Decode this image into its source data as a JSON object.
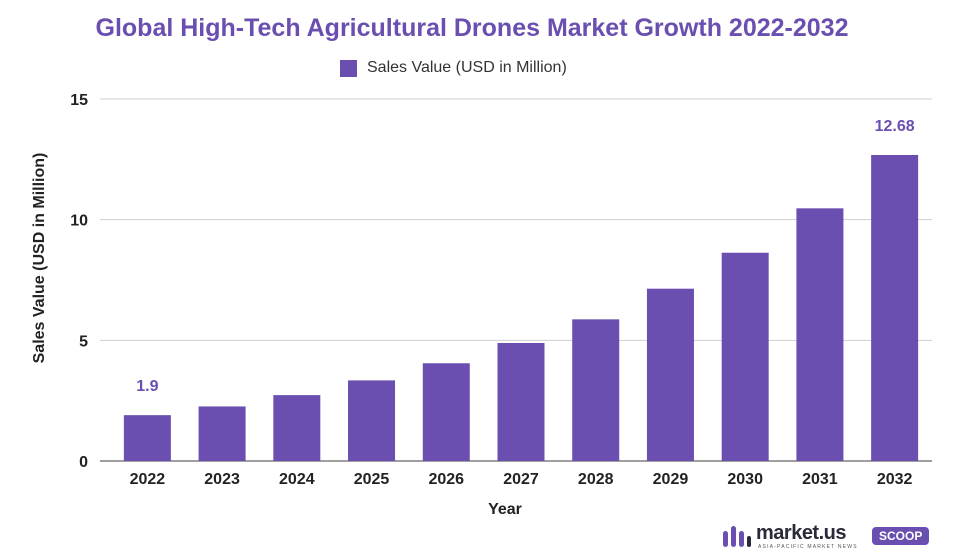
{
  "chart_data": {
    "type": "bar",
    "title": "Global High-Tech Agricultural Drones Market Growth 2022-2032",
    "xlabel": "Year",
    "ylabel": "Sales Value (USD in Million)",
    "ylim": [
      0,
      15
    ],
    "yticks": [
      0,
      5,
      10,
      15
    ],
    "grid": true,
    "legend_position": "top-center",
    "categories": [
      "2022",
      "2023",
      "2024",
      "2025",
      "2026",
      "2027",
      "2028",
      "2029",
      "2030",
      "2031",
      "2032"
    ],
    "series": [
      {
        "name": "Sales Value (USD in Million)",
        "color": "#6a4fb0",
        "values": [
          1.9,
          2.26,
          2.73,
          3.34,
          4.05,
          4.89,
          5.87,
          7.14,
          8.63,
          10.47,
          12.68
        ]
      }
    ],
    "data_labels": [
      {
        "index": 0,
        "text": "1.9"
      },
      {
        "index": 10,
        "text": "12.68"
      }
    ]
  },
  "logo": {
    "brand": "market.us",
    "tagline": "ASIA-PACIFIC MARKET NEWS",
    "badge": "SCOOP",
    "icon": "market-us-logo-icon"
  }
}
